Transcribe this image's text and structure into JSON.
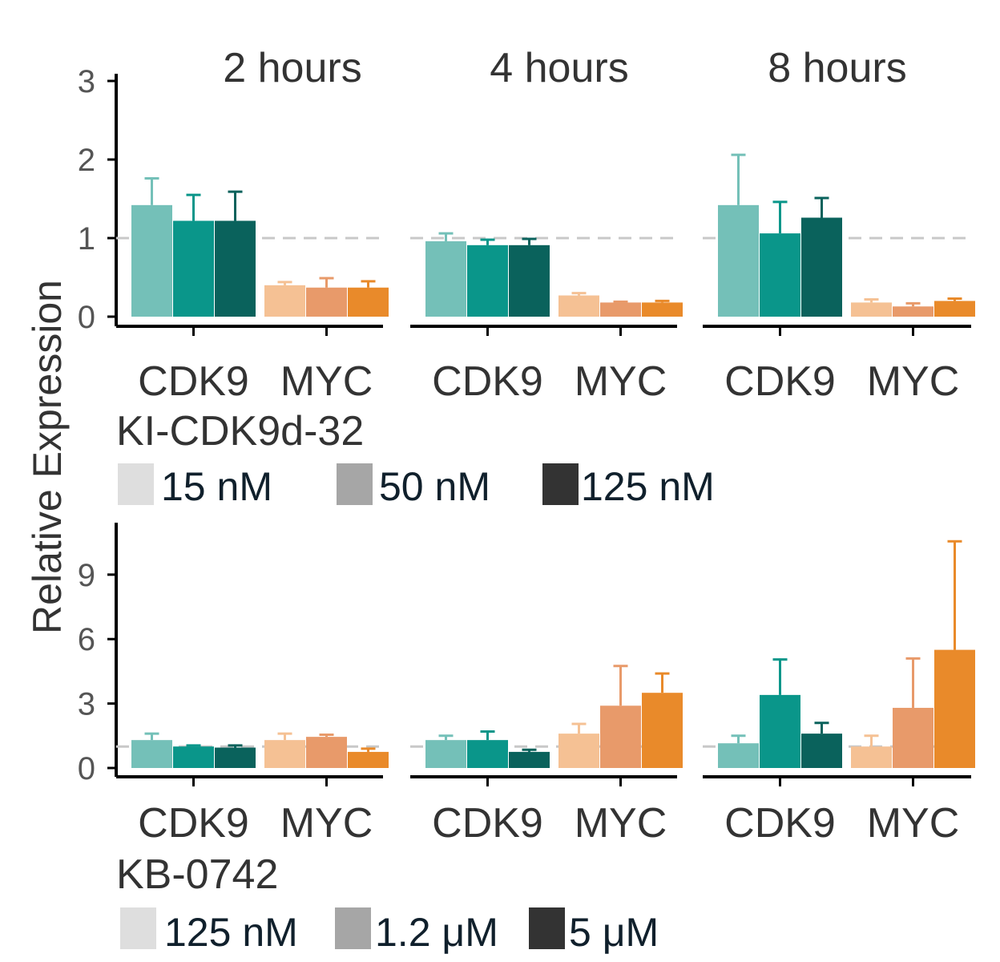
{
  "chart_data": {
    "type": "bar",
    "ylabel": "Relative Expression",
    "facets": [
      "2 hours",
      "4 hours",
      "8 hours"
    ],
    "categories": [
      "CDK9",
      "MYC"
    ],
    "reference_line": 1,
    "colors": {
      "CDK9": [
        "#74c0b8",
        "#0a968a",
        "#0a625c"
      ],
      "MYC": [
        "#f5c194",
        "#e89a6a",
        "#e98a2a"
      ],
      "legend": [
        "#dedede",
        "#a6a6a6",
        "#333333"
      ],
      "reference": "#c8c8c8"
    },
    "panels": [
      {
        "compound": "KI-CDK9d-32",
        "ylim": [
          0,
          3
        ],
        "yticks": [
          0,
          1,
          2,
          3
        ],
        "legend": [
          "15 nM",
          "50 nM",
          "125 nM"
        ],
        "data": [
          {
            "CDK9": {
              "values": [
                1.42,
                1.22,
                1.22
              ],
              "errors": [
                0.34,
                0.33,
                0.37
              ]
            },
            "MYC": {
              "values": [
                0.4,
                0.37,
                0.37
              ],
              "errors": [
                0.04,
                0.12,
                0.08
              ]
            }
          },
          {
            "CDK9": {
              "values": [
                0.96,
                0.91,
                0.91
              ],
              "errors": [
                0.1,
                0.07,
                0.08
              ]
            },
            "MYC": {
              "values": [
                0.27,
                0.18,
                0.18
              ],
              "errors": [
                0.03,
                0.01,
                0.02
              ]
            }
          },
          {
            "CDK9": {
              "values": [
                1.42,
                1.06,
                1.26
              ],
              "errors": [
                0.64,
                0.4,
                0.25
              ]
            },
            "MYC": {
              "values": [
                0.18,
                0.13,
                0.2
              ],
              "errors": [
                0.04,
                0.04,
                0.03
              ]
            }
          }
        ]
      },
      {
        "compound": "KB-0742",
        "ylim": [
          0,
          11
        ],
        "yticks": [
          0,
          3,
          6,
          9
        ],
        "legend": [
          "125 nM",
          "1.2 μM",
          "5  μM"
        ],
        "data": [
          {
            "CDK9": {
              "values": [
                1.3,
                1.0,
                0.95
              ],
              "errors": [
                0.3,
                0.05,
                0.1
              ]
            },
            "MYC": {
              "values": [
                1.3,
                1.45,
                0.75
              ],
              "errors": [
                0.3,
                0.1,
                0.15
              ]
            }
          },
          {
            "CDK9": {
              "values": [
                1.3,
                1.3,
                0.75
              ],
              "errors": [
                0.2,
                0.4,
                0.1
              ]
            },
            "MYC": {
              "values": [
                1.6,
                2.9,
                3.5
              ],
              "errors": [
                0.45,
                1.85,
                0.9
              ]
            }
          },
          {
            "CDK9": {
              "values": [
                1.15,
                3.4,
                1.6
              ],
              "errors": [
                0.35,
                1.65,
                0.5
              ]
            },
            "MYC": {
              "values": [
                1.0,
                2.8,
                5.5
              ],
              "errors": [
                0.5,
                2.3,
                5.05
              ]
            }
          }
        ]
      }
    ]
  }
}
